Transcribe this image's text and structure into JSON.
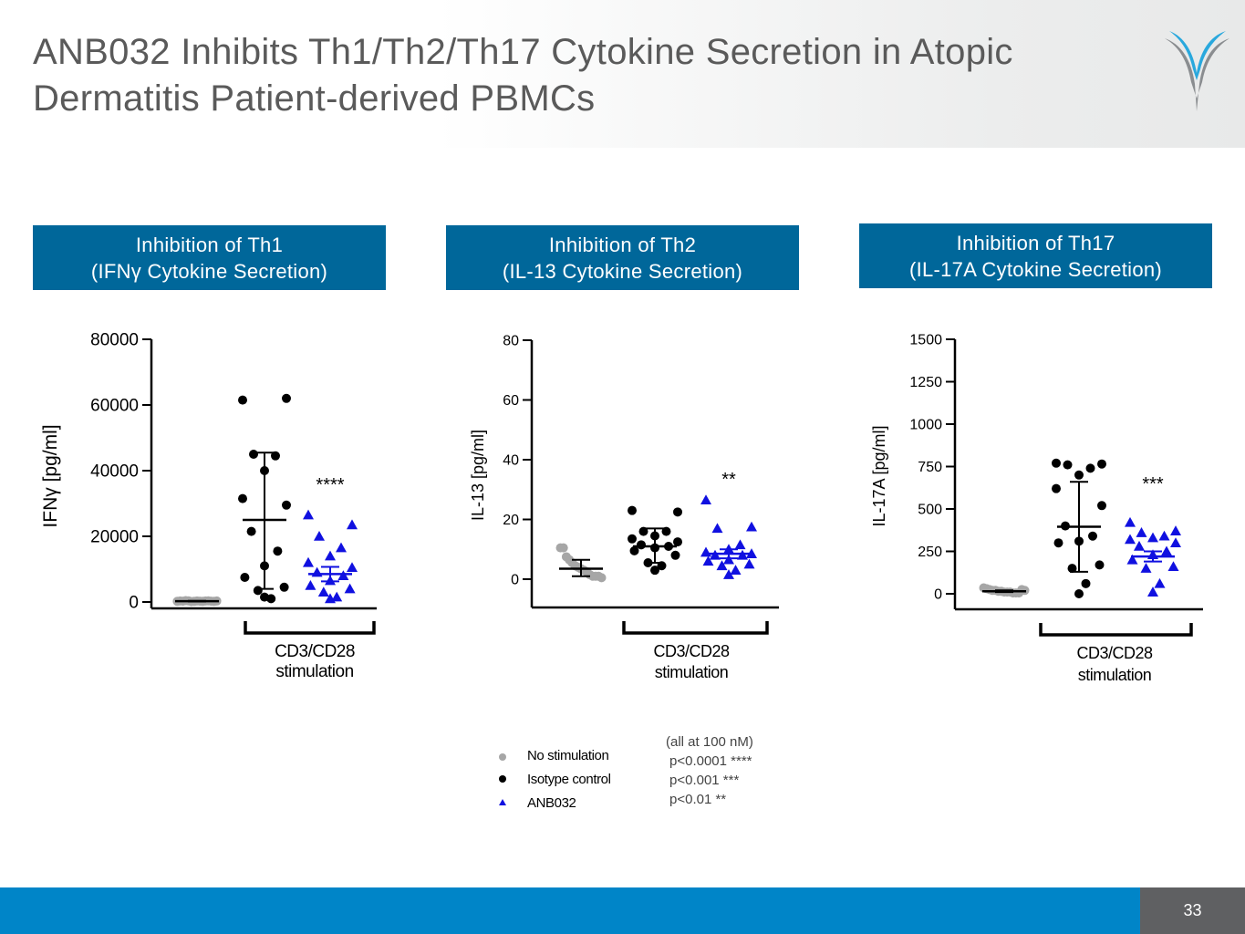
{
  "slide": {
    "title_line1": "ANB032 Inhibits Th1/Th2/Th17 Cytokine Secretion in Atopic",
    "title_line2": "Dermatitis Patient-derived PBMCs",
    "page_number": "33"
  },
  "panels": [
    {
      "title_line1": "Inhibition of Th1",
      "title_line2": "(IFNγ Cytokine Secretion)"
    },
    {
      "title_line1": "Inhibition of Th2",
      "title_line2": "(IL-13 Cytokine Secretion)"
    },
    {
      "title_line1": "Inhibition of Th17",
      "title_line2": "(IL-17A Cytokine Secretion)"
    }
  ],
  "legend": {
    "no_stimulation": "No stimulation",
    "isotype": "Isotype control",
    "anb032": "ANB032"
  },
  "pvalues": {
    "note": "(all at 100 nM)",
    "p4": "p<0.0001 ****",
    "p3": "p<0.001 ***",
    "p2": "p<0.01 **"
  },
  "colors": {
    "no_stimulation": "#a6a6a6",
    "isotype": "#000000",
    "anb032": "#1010e0",
    "panel_bg": "#00679a",
    "footer": "#0085c8"
  },
  "chart_data": [
    {
      "type": "scatter",
      "title": "Inhibition of Th1 (IFNγ Cytokine Secretion)",
      "ylabel": "IFNγ [pg/ml]",
      "ylim": [
        0,
        80000
      ],
      "yticks": [
        0,
        20000,
        40000,
        60000,
        80000
      ],
      "ytick_labels": [
        "0",
        "20000",
        "40000",
        "60000",
        "80000"
      ],
      "bracket_label_line1": "CD3/CD28",
      "bracket_label_line2": "stimulation",
      "significance": "****",
      "groups": [
        {
          "name": "No stimulation",
          "marker": "circle",
          "values": [
            200,
            300,
            250,
            400,
            350,
            150,
            200,
            300,
            250,
            200,
            300,
            350,
            250,
            200,
            300
          ],
          "mean": 250,
          "sem": 100
        },
        {
          "name": "Isotype control",
          "marker": "circle",
          "values": [
            61500,
            62000,
            45000,
            44500,
            40000,
            31500,
            29500,
            21500,
            15500,
            11000,
            7500,
            4500,
            3500,
            1000,
            1500
          ],
          "mean": 25000,
          "err_low": 4000,
          "err_high": 45500
        },
        {
          "name": "ANB032",
          "marker": "triangle",
          "values": [
            26500,
            23500,
            20000,
            16500,
            14000,
            12000,
            10500,
            9000,
            8000,
            6500,
            5000,
            4000,
            3000,
            1500,
            1000
          ],
          "mean": 8500,
          "sem": 2200
        }
      ]
    },
    {
      "type": "scatter",
      "title": "Inhibition of Th2 (IL-13 Cytokine Secretion)",
      "ylabel": "IL-13 [pg/ml]",
      "ylim": [
        -10,
        80
      ],
      "yticks": [
        0,
        20,
        40,
        60,
        80
      ],
      "ytick_labels": [
        "0",
        "20",
        "40",
        "60",
        "80"
      ],
      "bracket_label_line1": "CD3/CD28",
      "bracket_label_line2": "stimulation",
      "significance": "**",
      "groups": [
        {
          "name": "No stimulation",
          "marker": "circle",
          "values": [
            10.5,
            10.5,
            7.5,
            6.5,
            5.5,
            4.5,
            4,
            3.5,
            3,
            2.5,
            1.5,
            1,
            1,
            1,
            0.5
          ],
          "mean": 3.5,
          "err_low": 1,
          "err_high": 6.5
        },
        {
          "name": "Isotype control",
          "marker": "circle",
          "values": [
            23,
            22.5,
            16,
            16,
            14.5,
            13.5,
            12.5,
            11.5,
            11,
            10.5,
            9.5,
            8,
            5.5,
            4.5,
            3
          ],
          "mean": 11,
          "err_low": 5.5,
          "err_high": 17
        },
        {
          "name": "ANB032",
          "marker": "triangle",
          "values": [
            26.5,
            17.5,
            17,
            11.5,
            10,
            9,
            8.5,
            8,
            8,
            6.5,
            6,
            5,
            4.5,
            3,
            1.5
          ],
          "mean": 8.5,
          "sem": 1.5
        }
      ]
    },
    {
      "type": "scatter",
      "title": "Inhibition of Th17 (IL-17A Cytokine Secretion)",
      "ylabel": "IL-17A [pg/ml]",
      "ylim": [
        -100,
        1500
      ],
      "yticks": [
        0,
        250,
        500,
        750,
        1000,
        1250,
        1500
      ],
      "ytick_labels": [
        "0",
        "250",
        "500",
        "750",
        "1000",
        "1250",
        "1500"
      ],
      "bracket_label_line1": "CD3/CD28",
      "bracket_label_line2": "stimulation",
      "significance": "***",
      "groups": [
        {
          "name": "No stimulation",
          "marker": "circle",
          "values": [
            35,
            30,
            25,
            20,
            20,
            15,
            15,
            10,
            10,
            10,
            5,
            5,
            5,
            25,
            20
          ],
          "mean": 15,
          "sem": 5
        },
        {
          "name": "Isotype control",
          "marker": "circle",
          "values": [
            770,
            765,
            760,
            740,
            700,
            620,
            520,
            400,
            340,
            310,
            300,
            170,
            150,
            60,
            0
          ],
          "mean": 395,
          "err_low": 130,
          "err_high": 660
        },
        {
          "name": "ANB032",
          "marker": "triangle",
          "values": [
            420,
            370,
            360,
            340,
            330,
            320,
            300,
            280,
            250,
            230,
            200,
            160,
            150,
            60,
            10
          ],
          "mean": 220,
          "sem": 30
        }
      ]
    }
  ]
}
